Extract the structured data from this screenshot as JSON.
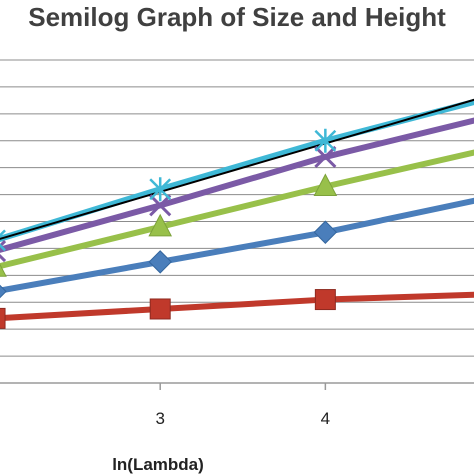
{
  "chart_data": {
    "type": "line",
    "title": "Semilog Graph of Size and Height",
    "xlabel": "ln(Lambda)",
    "ylabel": "",
    "x_ticks": [
      3,
      4
    ],
    "xlim": [
      2.03,
      4.9
    ],
    "ylim": [
      0,
      12
    ],
    "grid": "horizontal",
    "series": [
      {
        "marker": "square",
        "color": "#c0392b",
        "x": [
          2,
          3,
          4,
          5
        ],
        "y": [
          2.4,
          2.75,
          3.1,
          3.3
        ]
      },
      {
        "marker": "diamond",
        "color": "#4a7ebb",
        "x": [
          2,
          3,
          4,
          5
        ],
        "y": [
          3.4,
          4.5,
          5.6,
          6.9
        ]
      },
      {
        "marker": "triangle",
        "color": "#98c04a",
        "x": [
          2,
          3,
          4,
          5
        ],
        "y": [
          4.3,
          5.8,
          7.3,
          8.7
        ]
      },
      {
        "marker": "x",
        "color": "#7b5aa6",
        "x": [
          2,
          3,
          4,
          5
        ],
        "y": [
          4.9,
          6.6,
          8.4,
          9.9
        ]
      },
      {
        "marker": "asterisk",
        "color": "#3fb8d6",
        "x": [
          2,
          3,
          4,
          5
        ],
        "y": [
          5.3,
          7.2,
          9.0,
          10.6
        ]
      }
    ],
    "trendline": {
      "color": "#000000",
      "x": [
        2,
        5
      ],
      "y": [
        5.3,
        10.7
      ]
    }
  }
}
